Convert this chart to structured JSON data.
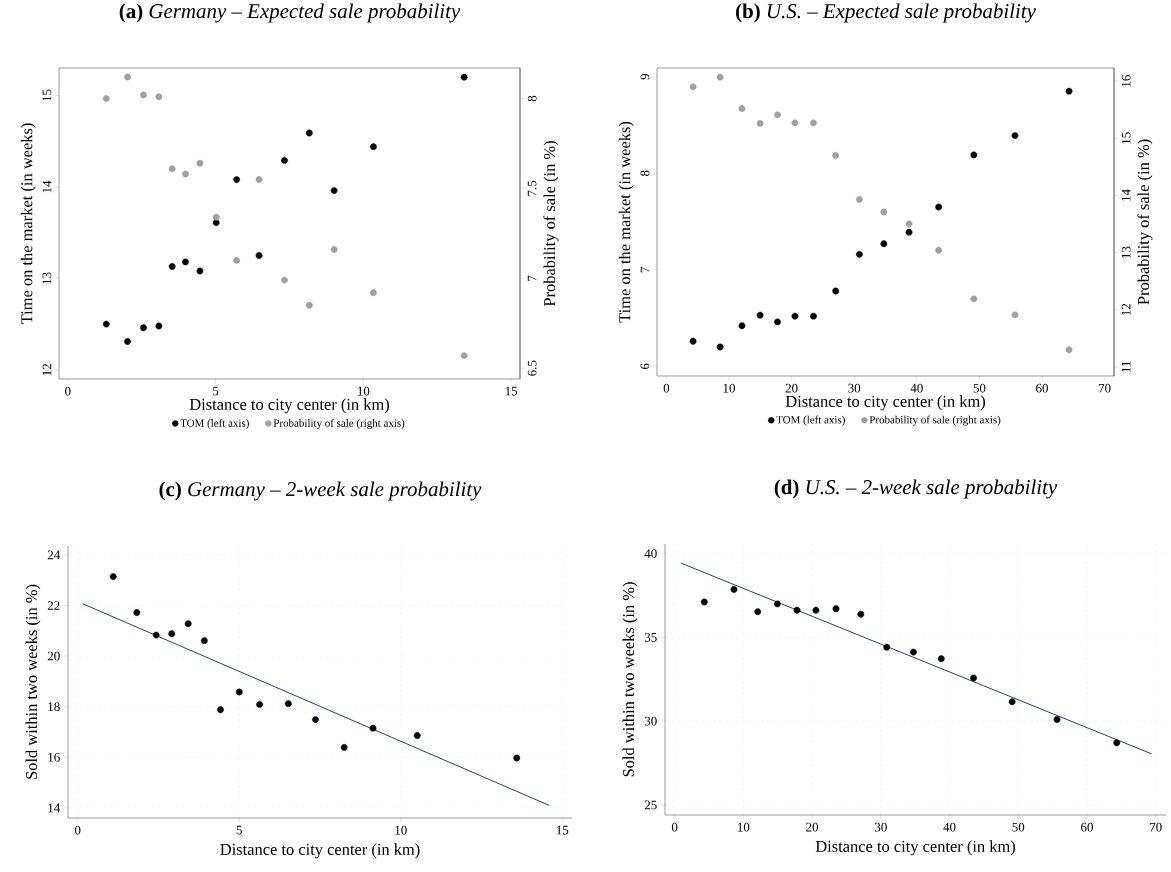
{
  "chart_data": [
    {
      "type": "scatter",
      "title": "**(a)** *Germany – Expected sale probability*",
      "xlabel": "Distance to city center (in km)",
      "ylabel": "Time on the market (in weeks)",
      "y2label": "Probability of sale (in %)",
      "x": [
        1.3,
        2.02,
        2.56,
        3.08,
        3.53,
        3.98,
        4.47,
        5.02,
        5.71,
        6.47,
        7.33,
        8.17,
        9.01,
        10.34,
        13.41
      ],
      "series": [
        {
          "name": "TOM (left axis)",
          "color": "#000000",
          "marker": "circle",
          "values": [
            12.5,
            12.31,
            12.46,
            12.48,
            13.13,
            13.18,
            13.08,
            13.61,
            14.08,
            13.25,
            14.29,
            14.59,
            13.96,
            14.44,
            15.2
          ]
        },
        {
          "name": "Probability of sale (right axis)",
          "color": "#a0a0a0",
          "marker": "circle",
          "axis": "y2",
          "values": [
            8.0,
            8.12,
            8.02,
            8.01,
            7.61,
            7.58,
            7.64,
            7.34,
            7.1,
            7.55,
            6.99,
            6.85,
            7.16,
            6.92,
            6.57
          ]
        }
      ],
      "xlim": [
        -0.3,
        15.3
      ],
      "xticks": [
        0,
        5,
        10,
        15
      ],
      "ylim": [
        11.9,
        15.3
      ],
      "yticks": [
        12,
        13,
        14,
        15
      ],
      "y2lim": [
        6.44,
        8.17
      ],
      "y2ticks": [
        6.5,
        7,
        7.5,
        8
      ],
      "legend": "bottom"
    },
    {
      "type": "scatter",
      "title": "**(b)** *U.S. – Expected sale probability*",
      "xlabel": "Distance to city center (in km)",
      "ylabel": "Time on the market (in weeks)",
      "y2label": "Probability of sale (in %)",
      "x": [
        4.26,
        8.58,
        12.07,
        14.97,
        17.75,
        20.53,
        23.49,
        27.04,
        30.83,
        34.73,
        38.76,
        43.49,
        49.11,
        55.68,
        64.32
      ],
      "series": [
        {
          "name": "TOM (left axis)",
          "color": "#000000",
          "marker": "circle",
          "values": [
            6.26,
            6.2,
            6.42,
            6.53,
            6.46,
            6.52,
            6.52,
            6.78,
            7.16,
            7.27,
            7.39,
            7.65,
            8.19,
            8.39,
            8.85
          ]
        },
        {
          "name": "Probability of sale (right axis)",
          "color": "#a0a0a0",
          "marker": "circle",
          "axis": "y2",
          "values": [
            15.9,
            16.07,
            15.52,
            15.26,
            15.41,
            15.27,
            15.27,
            14.7,
            13.93,
            13.71,
            13.5,
            13.04,
            12.19,
            11.91,
            11.3
          ]
        }
      ],
      "xlim": [
        -1.5,
        71.5
      ],
      "xticks": [
        0,
        10,
        20,
        30,
        40,
        50,
        60,
        70
      ],
      "ylim": [
        5.9,
        9.09
      ],
      "yticks": [
        6,
        7,
        8,
        9
      ],
      "y2lim": [
        10.84,
        16.23
      ],
      "y2ticks": [
        11,
        12,
        13,
        14,
        15,
        16
      ],
      "legend": "bottom"
    },
    {
      "type": "scatter",
      "title": "**(c)** *Germany – 2-week sale probability*",
      "xlabel": "Distance to city center (in km)",
      "ylabel": "Sold within two weeks (in %)",
      "x": [
        1.1,
        1.83,
        2.43,
        2.91,
        3.42,
        3.92,
        4.42,
        5.0,
        5.63,
        6.52,
        7.36,
        8.25,
        9.14,
        10.51,
        13.59
      ],
      "series": [
        {
          "color": "#000000",
          "marker": "circle",
          "values": [
            23.14,
            21.72,
            20.83,
            20.88,
            21.28,
            20.61,
            17.88,
            18.58,
            18.09,
            18.12,
            17.49,
            16.39,
            17.15,
            16.86,
            15.97
          ]
        },
        {
          "type": "line",
          "color": "#1a476f",
          "marker": "none",
          "x": [
            0.15,
            14.59
          ],
          "values": [
            22.07,
            14.1
          ]
        }
      ],
      "xlim": [
        -0.3,
        15.3
      ],
      "xticks": [
        0,
        5,
        10,
        15
      ],
      "ylim": [
        13.6,
        24.35
      ],
      "yticks": [
        14,
        16,
        18,
        20,
        22,
        24
      ],
      "grid": true
    },
    {
      "type": "scatter",
      "title": "**(d)** *U.S. – 2-week sale probability*",
      "xlabel": "Distance to city center (in km)",
      "ylabel": "Sold within two weeks (in %)",
      "x": [
        4.32,
        8.63,
        12.09,
        14.95,
        17.81,
        20.56,
        23.48,
        27.09,
        30.87,
        34.75,
        38.8,
        43.5,
        49.11,
        55.64,
        64.33
      ],
      "series": [
        {
          "color": "#000000",
          "marker": "circle",
          "values": [
            37.11,
            37.86,
            36.53,
            37.0,
            36.62,
            36.62,
            36.71,
            36.38,
            34.41,
            34.12,
            33.73,
            32.58,
            31.16,
            30.1,
            28.71
          ]
        },
        {
          "type": "line",
          "color": "#1a476f",
          "marker": "none",
          "x": [
            0.92,
            69.4
          ],
          "values": [
            39.43,
            28.05
          ]
        }
      ],
      "xlim": [
        -1.4,
        71.5
      ],
      "xticks": [
        0,
        10,
        20,
        30,
        40,
        50,
        60,
        70
      ],
      "ylim": [
        24.4,
        40.57
      ],
      "yticks": [
        25,
        30,
        35,
        40
      ],
      "grid": true
    }
  ]
}
